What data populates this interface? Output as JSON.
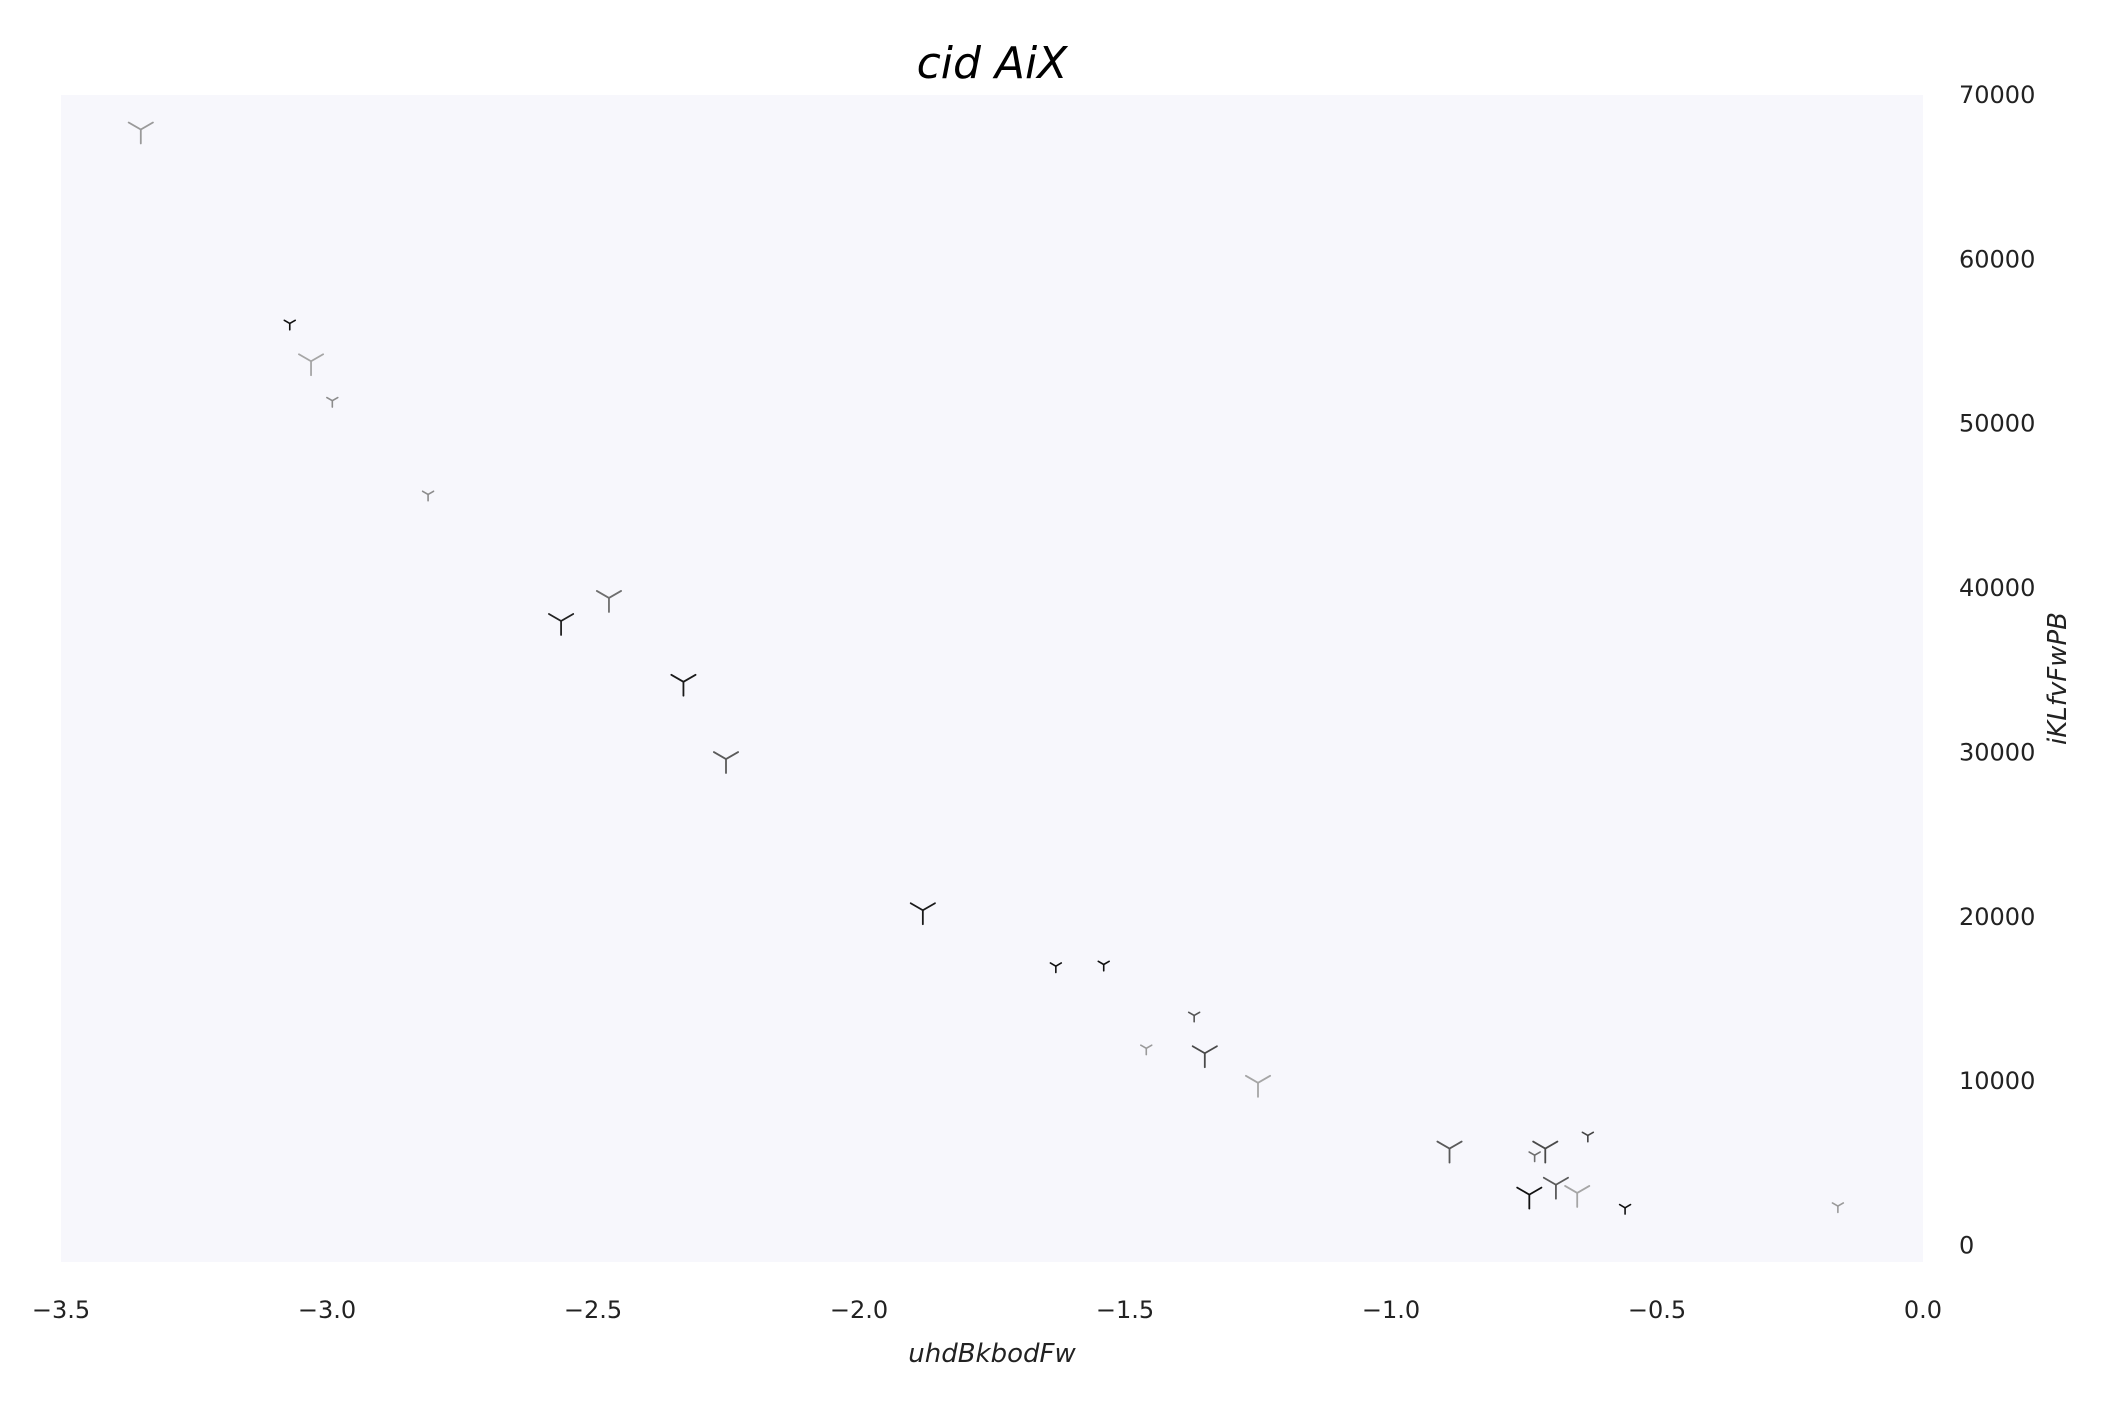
{
  "chart_data": {
    "type": "scatter",
    "title": "cid AiX",
    "xlabel": "uhdBkbodFw",
    "ylabel": "iKLfvFwPB",
    "xlim": [
      -3.5,
      0.0
    ],
    "ylim": [
      -1000,
      70000
    ],
    "x_ticks": [
      -3.5,
      -3.0,
      -2.5,
      -2.0,
      -1.5,
      -1.0,
      -0.5,
      0.0
    ],
    "x_tick_labels": [
      "−3.5",
      "−3.0",
      "−2.5",
      "−2.0",
      "−1.5",
      "−1.0",
      "−0.5",
      "0.0"
    ],
    "y_ticks": [
      0,
      10000,
      20000,
      30000,
      40000,
      50000,
      60000,
      70000
    ],
    "y_tick_labels": [
      "0",
      "10000",
      "20000",
      "30000",
      "40000",
      "50000",
      "60000",
      "70000"
    ],
    "y_axis_side": "right",
    "grid": false,
    "legend": false,
    "background_color": "#f7f7fc",
    "marker": "tri_down",
    "points": [
      {
        "x": -3.35,
        "y": 67900,
        "size": 1.0,
        "shade": "#9a9a9a"
      },
      {
        "x": -3.07,
        "y": 56100,
        "size": 0.45,
        "shade": "#111111"
      },
      {
        "x": -3.03,
        "y": 53800,
        "size": 1.0,
        "shade": "#a6a6a6"
      },
      {
        "x": -2.99,
        "y": 51400,
        "size": 0.45,
        "shade": "#8c8c8c"
      },
      {
        "x": -2.81,
        "y": 45700,
        "size": 0.45,
        "shade": "#8c8c8c"
      },
      {
        "x": -2.56,
        "y": 38000,
        "size": 1.0,
        "shade": "#222222"
      },
      {
        "x": -2.47,
        "y": 39400,
        "size": 1.0,
        "shade": "#6e6e6e"
      },
      {
        "x": -2.33,
        "y": 34300,
        "size": 1.0,
        "shade": "#1a1a1a"
      },
      {
        "x": -2.25,
        "y": 29600,
        "size": 1.0,
        "shade": "#5a5a5a"
      },
      {
        "x": -1.88,
        "y": 20400,
        "size": 1.0,
        "shade": "#1a1a1a"
      },
      {
        "x": -1.63,
        "y": 17000,
        "size": 0.45,
        "shade": "#111111"
      },
      {
        "x": -1.54,
        "y": 17100,
        "size": 0.45,
        "shade": "#111111"
      },
      {
        "x": -1.37,
        "y": 14000,
        "size": 0.45,
        "shade": "#555555"
      },
      {
        "x": -1.46,
        "y": 12000,
        "size": 0.45,
        "shade": "#9a9a9a"
      },
      {
        "x": -1.35,
        "y": 11700,
        "size": 1.0,
        "shade": "#4a4a4a"
      },
      {
        "x": -1.25,
        "y": 9900,
        "size": 1.0,
        "shade": "#a6a6a6"
      },
      {
        "x": -0.89,
        "y": 5900,
        "size": 1.0,
        "shade": "#5a5a5a"
      },
      {
        "x": -0.71,
        "y": 5900,
        "size": 1.0,
        "shade": "#4a4a4a"
      },
      {
        "x": -0.73,
        "y": 5500,
        "size": 0.45,
        "shade": "#6e6e6e"
      },
      {
        "x": -0.63,
        "y": 6700,
        "size": 0.45,
        "shade": "#444444"
      },
      {
        "x": -0.74,
        "y": 3100,
        "size": 1.0,
        "shade": "#111111"
      },
      {
        "x": -0.69,
        "y": 3700,
        "size": 1.0,
        "shade": "#5a5a5a"
      },
      {
        "x": -0.65,
        "y": 3200,
        "size": 1.0,
        "shade": "#a6a6a6"
      },
      {
        "x": -0.56,
        "y": 2300,
        "size": 0.45,
        "shade": "#111111"
      },
      {
        "x": -0.16,
        "y": 2400,
        "size": 0.45,
        "shade": "#9a9a9a"
      }
    ]
  }
}
